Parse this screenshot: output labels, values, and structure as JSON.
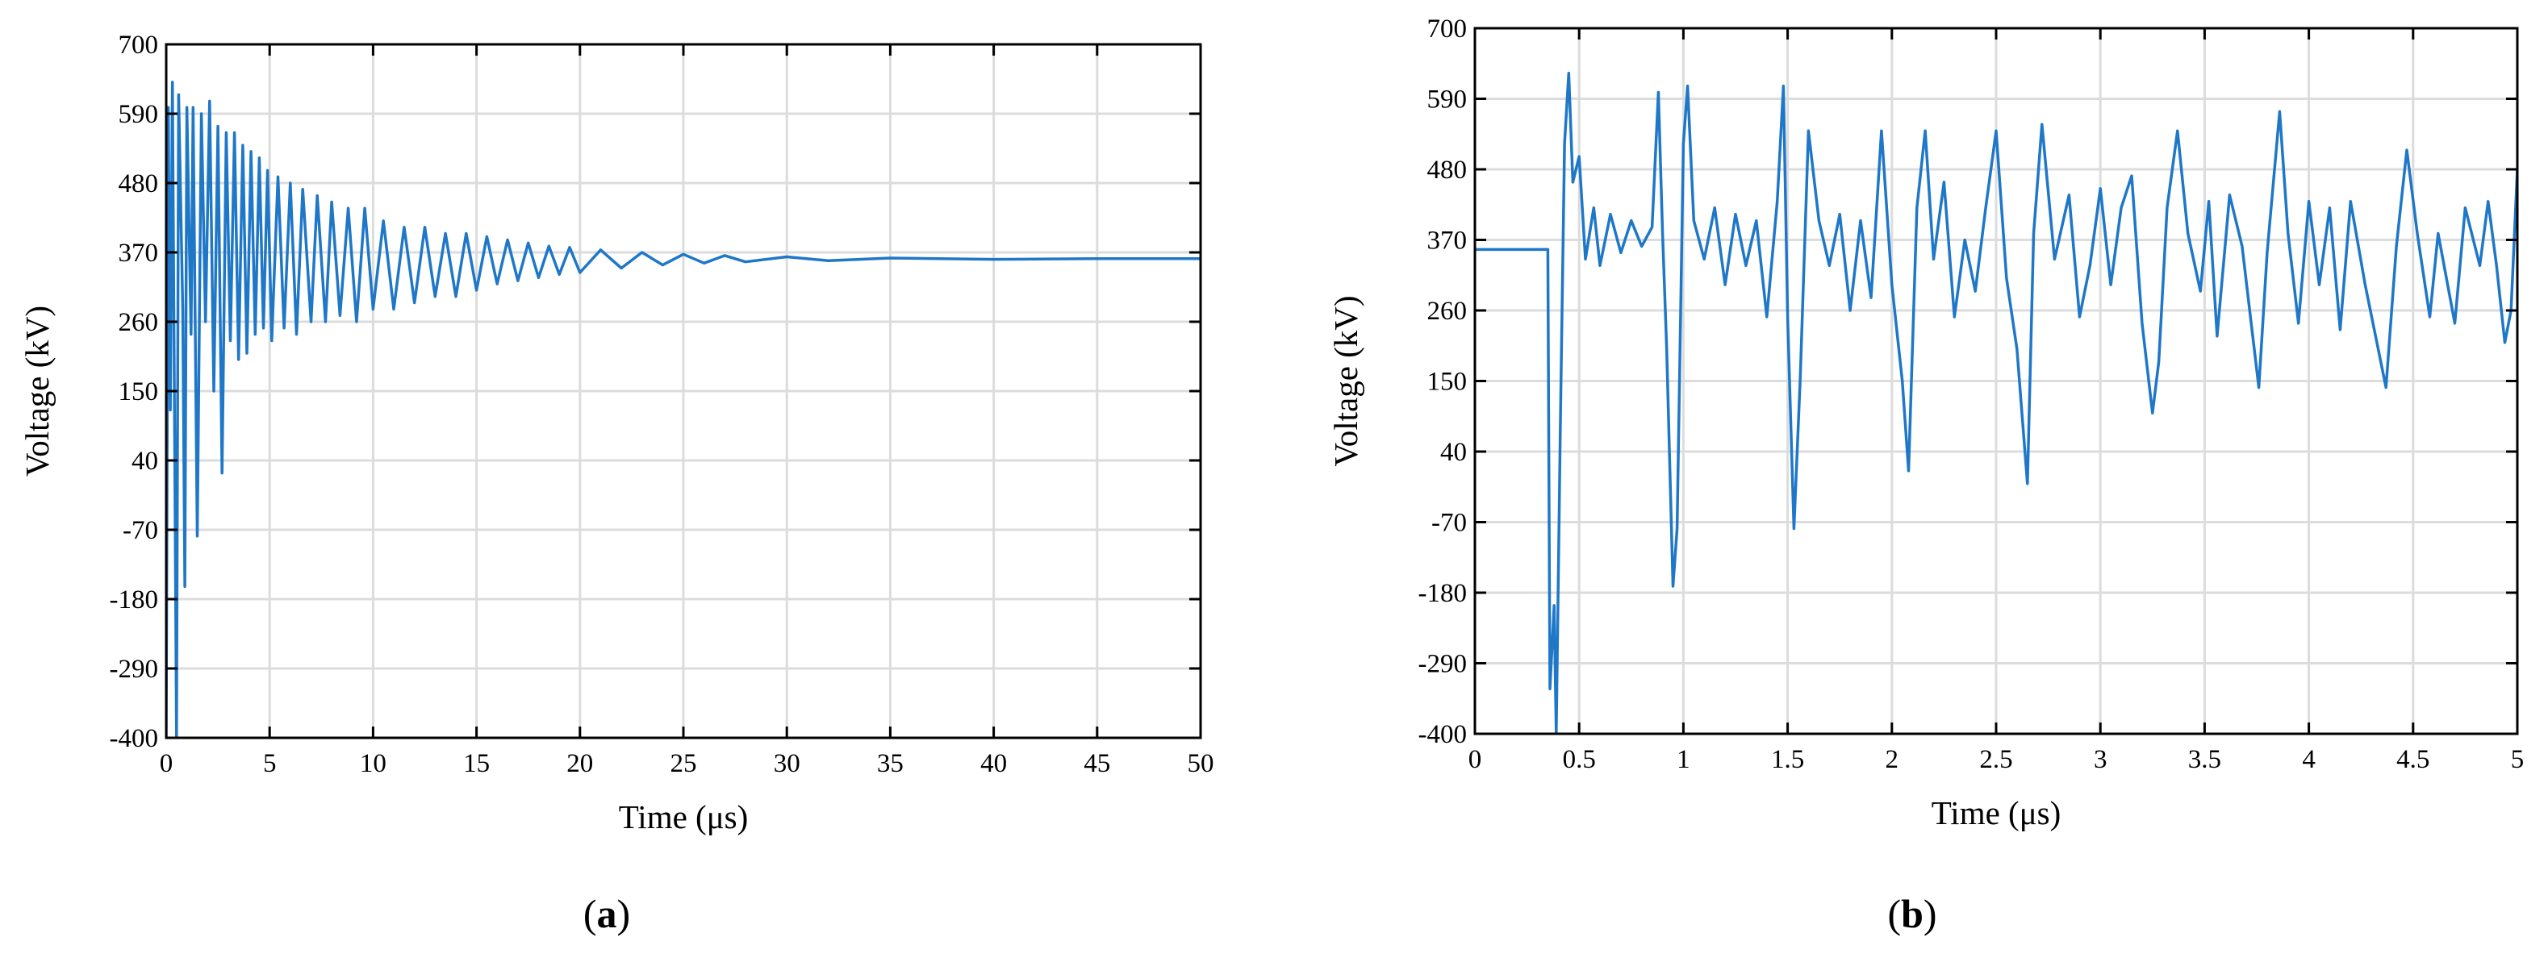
{
  "colors": {
    "series": "#1f77c8",
    "grid": "#dcdcdc",
    "axis": "#000000"
  },
  "chart_data": [
    {
      "type": "line",
      "panel_label": "a",
      "xlabel": "Time (μs)",
      "ylabel": "Voltage (kV)",
      "xlim": [
        0,
        50
      ],
      "ylim": [
        -400,
        700
      ],
      "xticks": [
        0,
        5,
        10,
        15,
        20,
        25,
        30,
        35,
        40,
        45,
        50
      ],
      "yticks": [
        -400,
        -290,
        -180,
        -70,
        40,
        150,
        260,
        370,
        480,
        590,
        700
      ],
      "grid": true,
      "series": [
        {
          "steady_state_kV": 360,
          "points": [
            [
              0,
              -400
            ],
            [
              0.1,
              600
            ],
            [
              0.2,
              120
            ],
            [
              0.3,
              640
            ],
            [
              0.5,
              -400
            ],
            [
              0.6,
              620
            ],
            [
              0.8,
              280
            ],
            [
              0.9,
              -160
            ],
            [
              1.0,
              600
            ],
            [
              1.2,
              240
            ],
            [
              1.3,
              600
            ],
            [
              1.5,
              -80
            ],
            [
              1.7,
              590
            ],
            [
              1.9,
              260
            ],
            [
              2.1,
              610
            ],
            [
              2.3,
              150
            ],
            [
              2.5,
              570
            ],
            [
              2.7,
              20
            ],
            [
              2.9,
              560
            ],
            [
              3.1,
              230
            ],
            [
              3.3,
              560
            ],
            [
              3.5,
              200
            ],
            [
              3.7,
              540
            ],
            [
              3.9,
              210
            ],
            [
              4.1,
              530
            ],
            [
              4.3,
              240
            ],
            [
              4.5,
              520
            ],
            [
              4.7,
              250
            ],
            [
              4.9,
              500
            ],
            [
              5.1,
              230
            ],
            [
              5.4,
              490
            ],
            [
              5.7,
              250
            ],
            [
              6.0,
              480
            ],
            [
              6.3,
              240
            ],
            [
              6.6,
              470
            ],
            [
              7.0,
              260
            ],
            [
              7.3,
              460
            ],
            [
              7.7,
              260
            ],
            [
              8.0,
              450
            ],
            [
              8.4,
              270
            ],
            [
              8.8,
              440
            ],
            [
              9.2,
              260
            ],
            [
              9.6,
              440
            ],
            [
              10.0,
              280
            ],
            [
              10.5,
              420
            ],
            [
              11,
              280
            ],
            [
              11.5,
              410
            ],
            [
              12,
              290
            ],
            [
              12.5,
              410
            ],
            [
              13,
              300
            ],
            [
              13.5,
              400
            ],
            [
              14,
              300
            ],
            [
              14.5,
              400
            ],
            [
              15,
              310
            ],
            [
              15.5,
              395
            ],
            [
              16,
              320
            ],
            [
              16.5,
              390
            ],
            [
              17,
              325
            ],
            [
              17.5,
              385
            ],
            [
              18,
              330
            ],
            [
              18.5,
              380
            ],
            [
              19,
              335
            ],
            [
              19.5,
              378
            ],
            [
              20,
              338
            ],
            [
              21,
              374
            ],
            [
              22,
              345
            ],
            [
              23,
              370
            ],
            [
              24,
              350
            ],
            [
              25,
              367
            ],
            [
              26,
              353
            ],
            [
              27,
              365
            ],
            [
              28,
              355
            ],
            [
              30,
              363
            ],
            [
              32,
              357
            ],
            [
              35,
              361
            ],
            [
              40,
              359
            ],
            [
              45,
              360
            ],
            [
              50,
              360
            ]
          ]
        }
      ]
    },
    {
      "type": "line",
      "panel_label": "b",
      "xlabel": "Time (μs)",
      "ylabel": "Voltage (kV)",
      "xlim": [
        0,
        5
      ],
      "ylim": [
        -400,
        700
      ],
      "xticks": [
        0,
        0.5,
        1,
        1.5,
        2,
        2.5,
        3,
        3.5,
        4,
        4.5,
        5
      ],
      "yticks": [
        -400,
        -290,
        -180,
        -70,
        40,
        150,
        260,
        370,
        480,
        590,
        700
      ],
      "grid": true,
      "series": [
        {
          "points": [
            [
              0,
              355
            ],
            [
              0.35,
              355
            ],
            [
              0.36,
              -330
            ],
            [
              0.38,
              -200
            ],
            [
              0.39,
              -400
            ],
            [
              0.41,
              80
            ],
            [
              0.43,
              520
            ],
            [
              0.45,
              630
            ],
            [
              0.47,
              460
            ],
            [
              0.5,
              500
            ],
            [
              0.53,
              340
            ],
            [
              0.57,
              420
            ],
            [
              0.6,
              330
            ],
            [
              0.65,
              410
            ],
            [
              0.7,
              350
            ],
            [
              0.75,
              400
            ],
            [
              0.8,
              360
            ],
            [
              0.85,
              390
            ],
            [
              0.88,
              600
            ],
            [
              0.9,
              380
            ],
            [
              0.92,
              200
            ],
            [
              0.95,
              -170
            ],
            [
              0.97,
              -80
            ],
            [
              1.0,
              520
            ],
            [
              1.02,
              610
            ],
            [
              1.05,
              400
            ],
            [
              1.1,
              340
            ],
            [
              1.15,
              420
            ],
            [
              1.2,
              300
            ],
            [
              1.25,
              410
            ],
            [
              1.3,
              330
            ],
            [
              1.35,
              400
            ],
            [
              1.4,
              250
            ],
            [
              1.45,
              430
            ],
            [
              1.48,
              610
            ],
            [
              1.5,
              250
            ],
            [
              1.53,
              -80
            ],
            [
              1.56,
              150
            ],
            [
              1.6,
              540
            ],
            [
              1.65,
              400
            ],
            [
              1.7,
              330
            ],
            [
              1.75,
              410
            ],
            [
              1.8,
              260
            ],
            [
              1.85,
              400
            ],
            [
              1.9,
              280
            ],
            [
              1.95,
              540
            ],
            [
              2.0,
              300
            ],
            [
              2.05,
              150
            ],
            [
              2.08,
              10
            ],
            [
              2.12,
              420
            ],
            [
              2.16,
              540
            ],
            [
              2.2,
              340
            ],
            [
              2.25,
              460
            ],
            [
              2.3,
              250
            ],
            [
              2.35,
              370
            ],
            [
              2.4,
              290
            ],
            [
              2.45,
              420
            ],
            [
              2.5,
              540
            ],
            [
              2.55,
              310
            ],
            [
              2.6,
              200
            ],
            [
              2.65,
              -10
            ],
            [
              2.68,
              380
            ],
            [
              2.72,
              550
            ],
            [
              2.78,
              340
            ],
            [
              2.85,
              440
            ],
            [
              2.9,
              250
            ],
            [
              2.95,
              330
            ],
            [
              3.0,
              450
            ],
            [
              3.05,
              300
            ],
            [
              3.1,
              420
            ],
            [
              3.15,
              470
            ],
            [
              3.2,
              240
            ],
            [
              3.25,
              100
            ],
            [
              3.28,
              180
            ],
            [
              3.32,
              420
            ],
            [
              3.37,
              540
            ],
            [
              3.42,
              380
            ],
            [
              3.48,
              290
            ],
            [
              3.52,
              430
            ],
            [
              3.56,
              220
            ],
            [
              3.62,
              440
            ],
            [
              3.68,
              360
            ],
            [
              3.72,
              250
            ],
            [
              3.76,
              140
            ],
            [
              3.8,
              350
            ],
            [
              3.86,
              570
            ],
            [
              3.9,
              380
            ],
            [
              3.95,
              240
            ],
            [
              4.0,
              430
            ],
            [
              4.05,
              300
            ],
            [
              4.1,
              420
            ],
            [
              4.15,
              230
            ],
            [
              4.2,
              430
            ],
            [
              4.27,
              300
            ],
            [
              4.32,
              220
            ],
            [
              4.37,
              140
            ],
            [
              4.42,
              360
            ],
            [
              4.47,
              510
            ],
            [
              4.52,
              380
            ],
            [
              4.58,
              250
            ],
            [
              4.62,
              380
            ],
            [
              4.7,
              240
            ],
            [
              4.75,
              420
            ],
            [
              4.82,
              330
            ],
            [
              4.86,
              430
            ],
            [
              4.9,
              330
            ],
            [
              4.94,
              210
            ],
            [
              4.97,
              260
            ],
            [
              5.0,
              480
            ]
          ]
        }
      ]
    }
  ]
}
